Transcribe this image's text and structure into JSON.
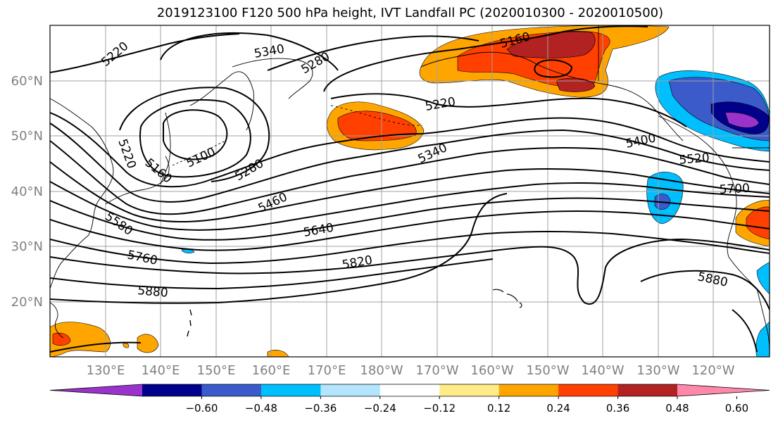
{
  "title": "2019123100 F120 500 hPa height, IVT Landfall PC (2020010300 - 2020010500)",
  "lat_labels": [
    "60°N",
    "50°N",
    "40°N",
    "30°N",
    "20°N"
  ],
  "lon_labels": [
    "130°E",
    "140°E",
    "150°E",
    "160°E",
    "170°E",
    "180°W",
    "170°W",
    "160°W",
    "150°W",
    "140°W",
    "130°W",
    "120°W"
  ],
  "colorbar": {
    "ticks": [
      "−0.60",
      "−0.48",
      "−0.36",
      "−0.24",
      "−0.12",
      "0.12",
      "0.24",
      "0.36",
      "0.48",
      "0.60"
    ],
    "colors": [
      "#9933cc",
      "#00008b",
      "#3a5bc9",
      "#00bfff",
      "#b3e5fc",
      "#ffffff",
      "#ffeb88",
      "#ffa500",
      "#ff4000",
      "#b22222",
      "#ff88aa"
    ]
  },
  "contour_labels": [
    "5220",
    "5340",
    "5280",
    "5160",
    "5220",
    "5100",
    "5160",
    "5220",
    "5280",
    "5340",
    "5400",
    "5520",
    "5460",
    "5700",
    "5580",
    "5640",
    "5760",
    "5820",
    "5880",
    "5880"
  ]
}
